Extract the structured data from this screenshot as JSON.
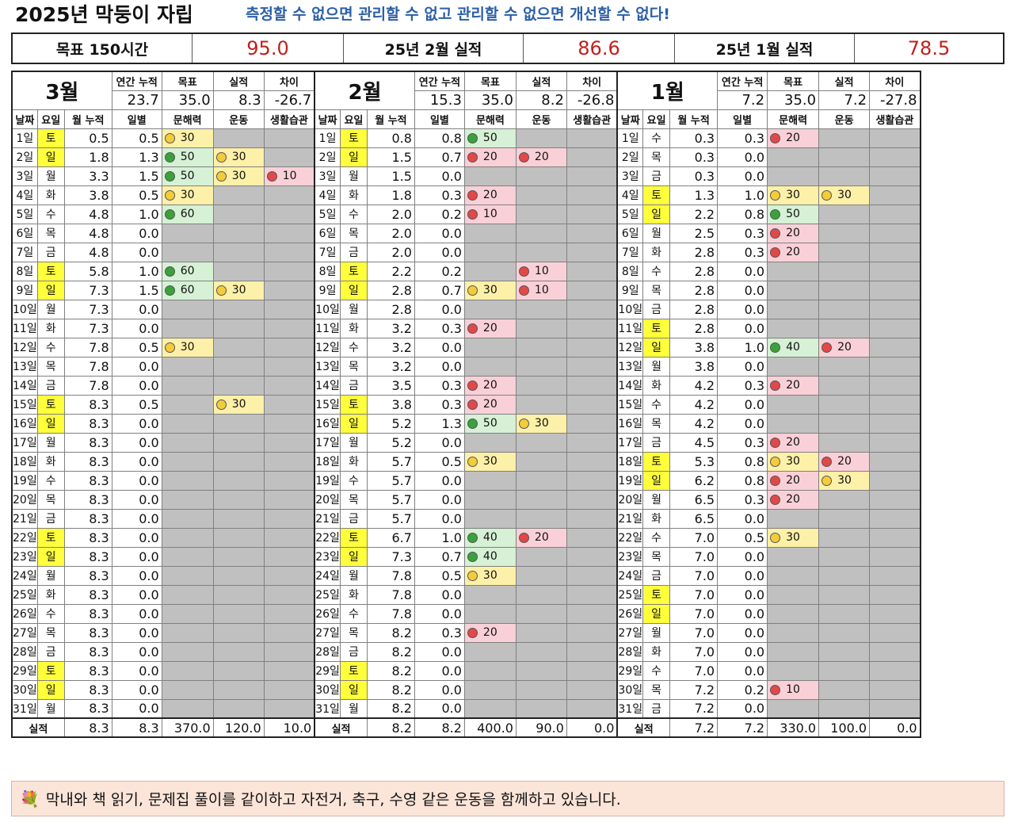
{
  "header": {
    "title": "2025년 막둥이 자립",
    "slogan": "측정할 수 없으면 관리할 수 없고 관리할 수 없으면 개선할 수 없다!"
  },
  "summary": [
    {
      "label": "목표 150시간",
      "value": "95.0"
    },
    {
      "label": "25년 2월 실적",
      "value": "86.6"
    },
    {
      "label": "25년 1월 실적",
      "value": "78.5"
    }
  ],
  "column_headers": {
    "date": "날짜",
    "weekday": "요일",
    "cum": "월 누적",
    "daily": "일별",
    "c1": "문해력",
    "c2": "운동",
    "c3": "생활습관"
  },
  "stat_headers": [
    "연간 누적",
    "목표",
    "실적",
    "차이"
  ],
  "total_label": "실적",
  "colors": {
    "weekend": "#ffff3c",
    "inactive": "#c0c0c0",
    "green": "#3aa23a",
    "yellow": "#f3cc3c",
    "red": "#e24848"
  },
  "months": [
    {
      "name": "3월",
      "stats": [
        "23.7",
        "35.0",
        "8.3",
        "-26.7"
      ],
      "totals": [
        "8.3",
        "8.3",
        "370.0",
        "120.0",
        "10.0"
      ],
      "days": [
        [
          "1일",
          "토",
          "0.5",
          "0.5",
          [
            "y",
            "30"
          ],
          null,
          null
        ],
        [
          "2일",
          "일",
          "1.8",
          "1.3",
          [
            "g",
            "50"
          ],
          [
            "y",
            "30"
          ],
          null
        ],
        [
          "3일",
          "월",
          "3.3",
          "1.5",
          [
            "g",
            "50"
          ],
          [
            "y",
            "30"
          ],
          [
            "r",
            "10"
          ]
        ],
        [
          "4일",
          "화",
          "3.8",
          "0.5",
          [
            "y",
            "30"
          ],
          null,
          null
        ],
        [
          "5일",
          "수",
          "4.8",
          "1.0",
          [
            "g",
            "60"
          ],
          null,
          null
        ],
        [
          "6일",
          "목",
          "4.8",
          "0.0",
          null,
          null,
          null
        ],
        [
          "7일",
          "금",
          "4.8",
          "0.0",
          null,
          null,
          null
        ],
        [
          "8일",
          "토",
          "5.8",
          "1.0",
          [
            "g",
            "60"
          ],
          null,
          null
        ],
        [
          "9일",
          "일",
          "7.3",
          "1.5",
          [
            "g",
            "60"
          ],
          [
            "y",
            "30"
          ],
          null
        ],
        [
          "10일",
          "월",
          "7.3",
          "0.0",
          null,
          null,
          null
        ],
        [
          "11일",
          "화",
          "7.3",
          "0.0",
          null,
          null,
          null
        ],
        [
          "12일",
          "수",
          "7.8",
          "0.5",
          [
            "y",
            "30"
          ],
          null,
          null
        ],
        [
          "13일",
          "목",
          "7.8",
          "0.0",
          null,
          null,
          null
        ],
        [
          "14일",
          "금",
          "7.8",
          "0.0",
          null,
          null,
          null
        ],
        [
          "15일",
          "토",
          "8.3",
          "0.5",
          null,
          [
            "y",
            "30"
          ],
          null
        ],
        [
          "16일",
          "일",
          "8.3",
          "0.0",
          null,
          null,
          null
        ],
        [
          "17일",
          "월",
          "8.3",
          "0.0",
          null,
          null,
          null
        ],
        [
          "18일",
          "화",
          "8.3",
          "0.0",
          null,
          null,
          null
        ],
        [
          "19일",
          "수",
          "8.3",
          "0.0",
          null,
          null,
          null
        ],
        [
          "20일",
          "목",
          "8.3",
          "0.0",
          null,
          null,
          null
        ],
        [
          "21일",
          "금",
          "8.3",
          "0.0",
          null,
          null,
          null
        ],
        [
          "22일",
          "토",
          "8.3",
          "0.0",
          null,
          null,
          null
        ],
        [
          "23일",
          "일",
          "8.3",
          "0.0",
          null,
          null,
          null
        ],
        [
          "24일",
          "월",
          "8.3",
          "0.0",
          null,
          null,
          null
        ],
        [
          "25일",
          "화",
          "8.3",
          "0.0",
          null,
          null,
          null
        ],
        [
          "26일",
          "수",
          "8.3",
          "0.0",
          null,
          null,
          null
        ],
        [
          "27일",
          "목",
          "8.3",
          "0.0",
          null,
          null,
          null
        ],
        [
          "28일",
          "금",
          "8.3",
          "0.0",
          null,
          null,
          null
        ],
        [
          "29일",
          "토",
          "8.3",
          "0.0",
          null,
          null,
          null
        ],
        [
          "30일",
          "일",
          "8.3",
          "0.0",
          null,
          null,
          null
        ],
        [
          "31일",
          "월",
          "8.3",
          "0.0",
          null,
          null,
          null
        ]
      ]
    },
    {
      "name": "2월",
      "stats": [
        "15.3",
        "35.0",
        "8.2",
        "-26.8"
      ],
      "totals": [
        "8.2",
        "8.2",
        "400.0",
        "90.0",
        "0.0"
      ],
      "days": [
        [
          "1일",
          "토",
          "0.8",
          "0.8",
          [
            "g",
            "50"
          ],
          null,
          null
        ],
        [
          "2일",
          "일",
          "1.5",
          "0.7",
          [
            "r",
            "20"
          ],
          [
            "r",
            "20"
          ],
          null
        ],
        [
          "3일",
          "월",
          "1.5",
          "0.0",
          null,
          null,
          null
        ],
        [
          "4일",
          "화",
          "1.8",
          "0.3",
          [
            "r",
            "20"
          ],
          null,
          null
        ],
        [
          "5일",
          "수",
          "2.0",
          "0.2",
          [
            "r",
            "10"
          ],
          null,
          null
        ],
        [
          "6일",
          "목",
          "2.0",
          "0.0",
          null,
          null,
          null
        ],
        [
          "7일",
          "금",
          "2.0",
          "0.0",
          null,
          null,
          null
        ],
        [
          "8일",
          "토",
          "2.2",
          "0.2",
          null,
          [
            "r",
            "10"
          ],
          null
        ],
        [
          "9일",
          "일",
          "2.8",
          "0.7",
          [
            "y",
            "30"
          ],
          [
            "r",
            "10"
          ],
          null
        ],
        [
          "10일",
          "월",
          "2.8",
          "0.0",
          null,
          null,
          null
        ],
        [
          "11일",
          "화",
          "3.2",
          "0.3",
          [
            "r",
            "20"
          ],
          null,
          null
        ],
        [
          "12일",
          "수",
          "3.2",
          "0.0",
          null,
          null,
          null
        ],
        [
          "13일",
          "목",
          "3.2",
          "0.0",
          null,
          null,
          null
        ],
        [
          "14일",
          "금",
          "3.5",
          "0.3",
          [
            "r",
            "20"
          ],
          null,
          null
        ],
        [
          "15일",
          "토",
          "3.8",
          "0.3",
          [
            "r",
            "20"
          ],
          null,
          null
        ],
        [
          "16일",
          "일",
          "5.2",
          "1.3",
          [
            "g",
            "50"
          ],
          [
            "y",
            "30"
          ],
          null
        ],
        [
          "17일",
          "월",
          "5.2",
          "0.0",
          null,
          null,
          null
        ],
        [
          "18일",
          "화",
          "5.7",
          "0.5",
          [
            "y",
            "30"
          ],
          null,
          null
        ],
        [
          "19일",
          "수",
          "5.7",
          "0.0",
          null,
          null,
          null
        ],
        [
          "20일",
          "목",
          "5.7",
          "0.0",
          null,
          null,
          null
        ],
        [
          "21일",
          "금",
          "5.7",
          "0.0",
          null,
          null,
          null
        ],
        [
          "22일",
          "토",
          "6.7",
          "1.0",
          [
            "g",
            "40"
          ],
          [
            "r",
            "20"
          ],
          null
        ],
        [
          "23일",
          "일",
          "7.3",
          "0.7",
          [
            "g",
            "40"
          ],
          null,
          null
        ],
        [
          "24일",
          "월",
          "7.8",
          "0.5",
          [
            "y",
            "30"
          ],
          null,
          null
        ],
        [
          "25일",
          "화",
          "7.8",
          "0.0",
          null,
          null,
          null
        ],
        [
          "26일",
          "수",
          "7.8",
          "0.0",
          null,
          null,
          null
        ],
        [
          "27일",
          "목",
          "8.2",
          "0.3",
          [
            "r",
            "20"
          ],
          null,
          null
        ],
        [
          "28일",
          "금",
          "8.2",
          "0.0",
          null,
          null,
          null
        ],
        [
          "29일",
          "토",
          "8.2",
          "0.0",
          null,
          null,
          null
        ],
        [
          "30일",
          "일",
          "8.2",
          "0.0",
          null,
          null,
          null
        ],
        [
          "31일",
          "월",
          "8.2",
          "0.0",
          null,
          null,
          null
        ]
      ]
    },
    {
      "name": "1월",
      "stats": [
        "7.2",
        "35.0",
        "7.2",
        "-27.8"
      ],
      "totals": [
        "7.2",
        "7.2",
        "330.0",
        "100.0",
        "0.0"
      ],
      "days": [
        [
          "1일",
          "수",
          "0.3",
          "0.3",
          [
            "r",
            "20"
          ],
          null,
          null
        ],
        [
          "2일",
          "목",
          "0.3",
          "0.0",
          null,
          null,
          null
        ],
        [
          "3일",
          "금",
          "0.3",
          "0.0",
          null,
          null,
          null
        ],
        [
          "4일",
          "토",
          "1.3",
          "1.0",
          [
            "y",
            "30"
          ],
          [
            "y",
            "30"
          ],
          null
        ],
        [
          "5일",
          "일",
          "2.2",
          "0.8",
          [
            "g",
            "50"
          ],
          null,
          null
        ],
        [
          "6일",
          "월",
          "2.5",
          "0.3",
          [
            "r",
            "20"
          ],
          null,
          null
        ],
        [
          "7일",
          "화",
          "2.8",
          "0.3",
          [
            "r",
            "20"
          ],
          null,
          null
        ],
        [
          "8일",
          "수",
          "2.8",
          "0.0",
          null,
          null,
          null
        ],
        [
          "9일",
          "목",
          "2.8",
          "0.0",
          null,
          null,
          null
        ],
        [
          "10일",
          "금",
          "2.8",
          "0.0",
          null,
          null,
          null
        ],
        [
          "11일",
          "토",
          "2.8",
          "0.0",
          null,
          null,
          null
        ],
        [
          "12일",
          "일",
          "3.8",
          "1.0",
          [
            "g",
            "40"
          ],
          [
            "r",
            "20"
          ],
          null
        ],
        [
          "13일",
          "월",
          "3.8",
          "0.0",
          null,
          null,
          null
        ],
        [
          "14일",
          "화",
          "4.2",
          "0.3",
          [
            "r",
            "20"
          ],
          null,
          null
        ],
        [
          "15일",
          "수",
          "4.2",
          "0.0",
          null,
          null,
          null
        ],
        [
          "16일",
          "목",
          "4.2",
          "0.0",
          null,
          null,
          null
        ],
        [
          "17일",
          "금",
          "4.5",
          "0.3",
          [
            "r",
            "20"
          ],
          null,
          null
        ],
        [
          "18일",
          "토",
          "5.3",
          "0.8",
          [
            "y",
            "30"
          ],
          [
            "r",
            "20"
          ],
          null
        ],
        [
          "19일",
          "일",
          "6.2",
          "0.8",
          [
            "r",
            "20"
          ],
          [
            "y",
            "30"
          ],
          null
        ],
        [
          "20일",
          "월",
          "6.5",
          "0.3",
          [
            "r",
            "20"
          ],
          null,
          null
        ],
        [
          "21일",
          "화",
          "6.5",
          "0.0",
          null,
          null,
          null
        ],
        [
          "22일",
          "수",
          "7.0",
          "0.5",
          [
            "y",
            "30"
          ],
          null,
          null
        ],
        [
          "23일",
          "목",
          "7.0",
          "0.0",
          null,
          null,
          null
        ],
        [
          "24일",
          "금",
          "7.0",
          "0.0",
          null,
          null,
          null
        ],
        [
          "25일",
          "토",
          "7.0",
          "0.0",
          null,
          null,
          null
        ],
        [
          "26일",
          "일",
          "7.0",
          "0.0",
          null,
          null,
          null
        ],
        [
          "27일",
          "월",
          "7.0",
          "0.0",
          null,
          null,
          null
        ],
        [
          "28일",
          "화",
          "7.0",
          "0.0",
          null,
          null,
          null
        ],
        [
          "29일",
          "수",
          "7.0",
          "0.0",
          null,
          null,
          null
        ],
        [
          "30일",
          "목",
          "7.2",
          "0.2",
          [
            "r",
            "10"
          ],
          null,
          null
        ],
        [
          "31일",
          "금",
          "7.2",
          "0.0",
          null,
          null,
          null
        ]
      ]
    }
  ],
  "note": {
    "icon": "bouquet-icon",
    "text": "막내와 책 읽기, 문제집 풀이를 같이하고 자전거, 축구, 수영 같은 운동을 함께하고 있습니다."
  }
}
